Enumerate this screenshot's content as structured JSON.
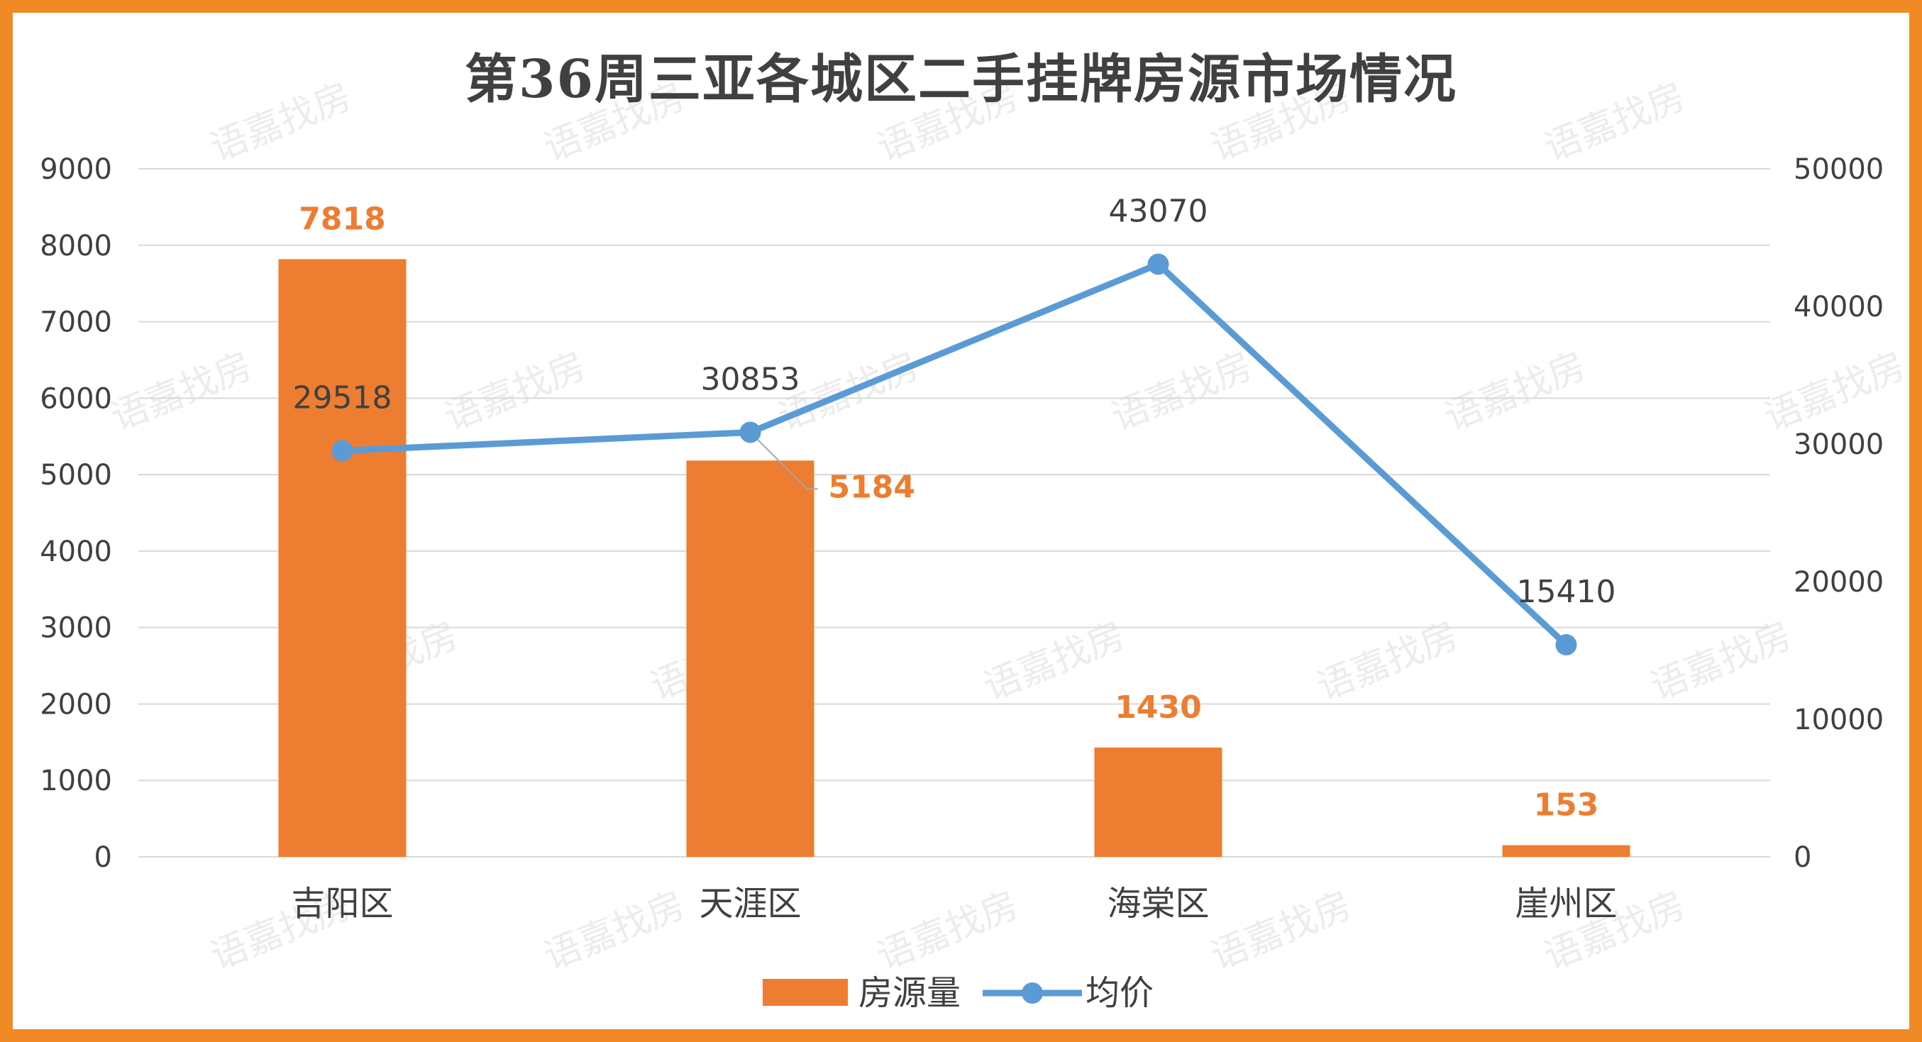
{
  "watermark": "语嘉找房",
  "colors": {
    "bar": "#ed7d31",
    "line": "#5b9bd5",
    "border": "#f08a24",
    "grid": "#d9d9d9",
    "text": "#404040"
  },
  "chart_data": {
    "type": "bar",
    "title": "第36周三亚各城区二手挂牌房源市场情况",
    "categories": [
      "吉阳区",
      "天涯区",
      "海棠区",
      "崖州区"
    ],
    "series": [
      {
        "name": "房源量",
        "type": "bar",
        "axis": "left",
        "values": [
          7818,
          5184,
          1430,
          153
        ]
      },
      {
        "name": "均价",
        "type": "line",
        "axis": "right",
        "values": [
          29518,
          30853,
          43070,
          15410
        ]
      }
    ],
    "y_left": {
      "ylim": [
        0,
        9000
      ],
      "ticks": [
        0,
        1000,
        2000,
        3000,
        4000,
        5000,
        6000,
        7000,
        8000,
        9000
      ]
    },
    "y_right": {
      "ylim": [
        0,
        50000
      ],
      "ticks": [
        0,
        10000,
        20000,
        30000,
        40000,
        50000
      ]
    },
    "legend": "bottom",
    "grid": true
  }
}
